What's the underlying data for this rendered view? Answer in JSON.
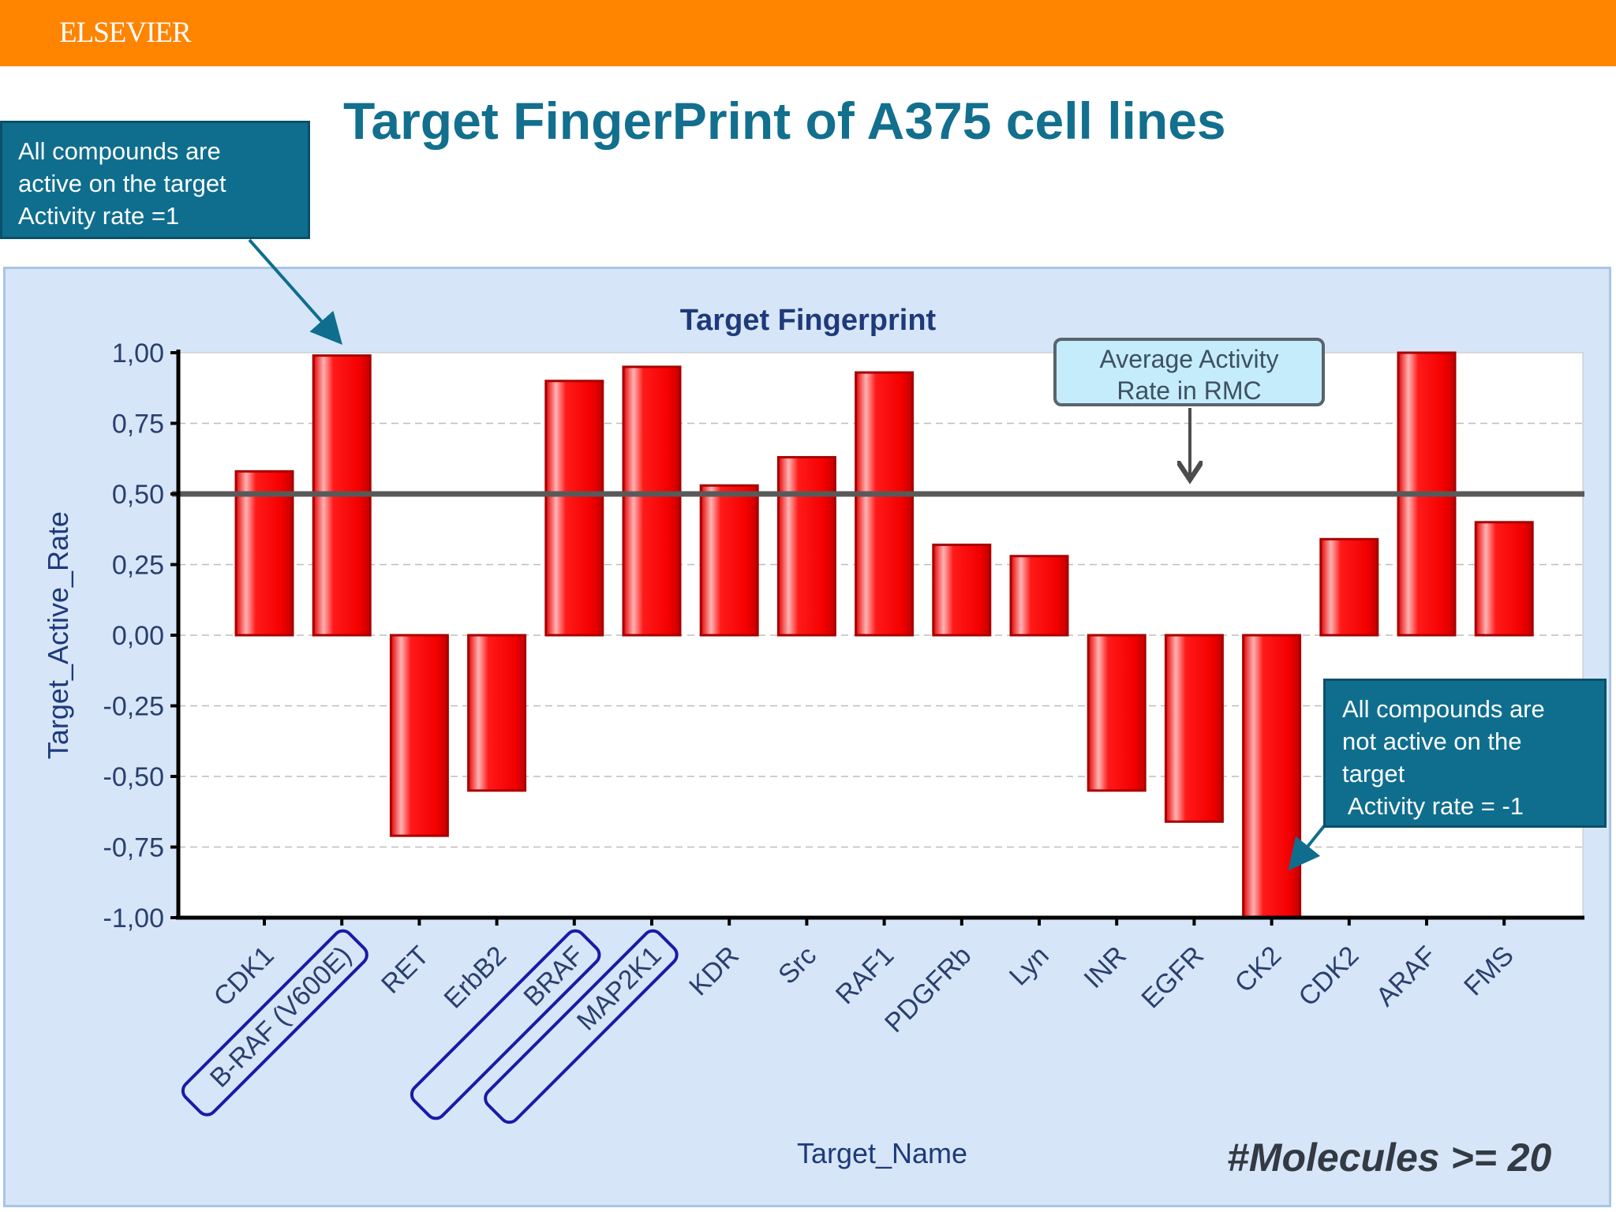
{
  "header": {
    "publisher": "ELSEVIER",
    "bar_color": "#ff8400"
  },
  "slide": {
    "title": "Target FingerPrint of A375 cell lines"
  },
  "callouts": {
    "active": {
      "text": "All compounds are\nactive on the target\nActivity rate =1"
    },
    "inactive": {
      "text": "All compounds are\nnot active on the\ntarget\n Activity rate = -1"
    },
    "average": {
      "text": "Average Activity\nRate in RMC"
    }
  },
  "note": "#Molecules >= 20",
  "chart_data": {
    "type": "bar",
    "title": "Target Fingerprint",
    "xlabel": "Target_Name",
    "ylabel": "Target_Active_Rate",
    "ylim": [
      -1,
      1
    ],
    "yticks": [
      1,
      0.75,
      0.5,
      0.25,
      0,
      -0.25,
      -0.5,
      -0.75,
      -1
    ],
    "ytick_labels": [
      "1,00",
      "0,75",
      "0,50",
      "0,25",
      "0,00",
      "-0,25",
      "-0,50",
      "-0,75",
      "-1,00"
    ],
    "categories": [
      "CDK1",
      "B-RAF (V600E)",
      "RET",
      "ErbB2",
      "BRAF",
      "MAP2K1",
      "KDR",
      "Src",
      "RAF1",
      "PDGFRb",
      "Lyn",
      "INR",
      "EGFR",
      "CK2",
      "CDK2",
      "ARAF",
      "FMS"
    ],
    "values": [
      0.58,
      0.99,
      -0.71,
      -0.55,
      0.9,
      0.95,
      0.53,
      0.63,
      0.93,
      0.32,
      0.28,
      -0.55,
      -0.66,
      -1.0,
      0.34,
      1.0,
      0.4
    ],
    "highlighted_categories": [
      "B-RAF (V600E)",
      "BRAF",
      "MAP2K1"
    ],
    "reference_line": {
      "value": 0.5,
      "color": "#595959"
    },
    "grid": "horizontal dashed",
    "bar_color": "#ff0000",
    "highlight_color": "#1a1aa8"
  }
}
